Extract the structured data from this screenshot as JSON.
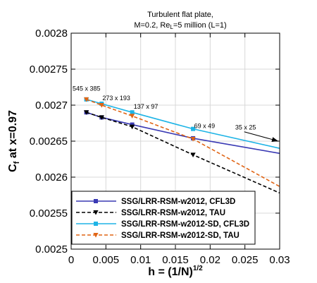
{
  "chart_data": {
    "type": "line",
    "title_line1": "Turbulent flat plate,",
    "title_line2_prefix": "M=0.2, Re",
    "title_line2_sub": "L",
    "title_line2_suffix": "=5 million (L=1)",
    "xlabel": "h = (1/N)",
    "xlabel_sup": "1/2",
    "ylabel_main": "C",
    "ylabel_sub": "f",
    "ylabel_rest": " at x=0.97",
    "xlim": [
      0,
      0.03
    ],
    "ylim": [
      0.0025,
      0.0028
    ],
    "x_ticks": [
      0,
      0.005,
      0.01,
      0.015,
      0.02,
      0.025,
      0.03
    ],
    "x_tick_labels": [
      "0",
      "0.005",
      "0.01",
      "0.015",
      "0.02",
      "0.025",
      "0.03"
    ],
    "y_ticks": [
      0.0025,
      0.00255,
      0.0026,
      0.00265,
      0.0027,
      0.00275,
      0.0028
    ],
    "y_tick_labels": [
      "0.0025",
      "0.00255",
      "0.0026",
      "0.00265",
      "0.0027",
      "0.00275",
      "0.0028"
    ],
    "grid": true,
    "legend_position": "bottom",
    "series": [
      {
        "name": "SSG/LRR-RSM-w2012, CFL3D",
        "color": "#3a3ab4",
        "dash": "solid",
        "marker": "square",
        "x": [
          0.00219,
          0.00439,
          0.00878,
          0.01754,
          0.03
        ],
        "y": [
          0.00269,
          0.002683,
          0.002673,
          0.002654,
          0.002633
        ]
      },
      {
        "name": "SSG/LRR-RSM-w2012, TAU",
        "color": "#000000",
        "dash": "dashed",
        "marker": "triangle-down",
        "x": [
          0.00219,
          0.00439,
          0.00878,
          0.01754,
          0.03
        ],
        "y": [
          0.00269,
          0.002683,
          0.00267,
          0.002631,
          0.002578
        ]
      },
      {
        "name": "SSG/LRR-RSM-w2012-SD, CFL3D",
        "color": "#1eb4e6",
        "dash": "solid",
        "marker": "square",
        "x": [
          0.00219,
          0.00439,
          0.00878,
          0.01754,
          0.03
        ],
        "y": [
          0.002708,
          0.002702,
          0.00269,
          0.002667,
          0.00264
        ]
      },
      {
        "name": "SSG/LRR-RSM-w2012-SD, TAU",
        "color": "#e06414",
        "dash": "dashed",
        "marker": "triangle-down",
        "x": [
          0.00219,
          0.00439,
          0.00878,
          0.01754,
          0.03
        ],
        "y": [
          0.002708,
          0.0027,
          0.002685,
          0.002653,
          0.002587
        ]
      }
    ],
    "annotations": [
      {
        "text": "545 x 385",
        "x": 0.0002,
        "y": 0.00272
      },
      {
        "text": "273 x 193",
        "x": 0.0045,
        "y": 0.002707
      },
      {
        "text": "137 x 97",
        "x": 0.009,
        "y": 0.002695
      },
      {
        "text": "69 x 49",
        "x": 0.0177,
        "y": 0.002668
      },
      {
        "text": "35 x 25",
        "x": 0.0236,
        "y": 0.002666
      }
    ],
    "arrow": {
      "from_x": 0.0249,
      "from_y": 0.002663,
      "to_x": 0.0298,
      "to_y": 0.00265
    }
  }
}
